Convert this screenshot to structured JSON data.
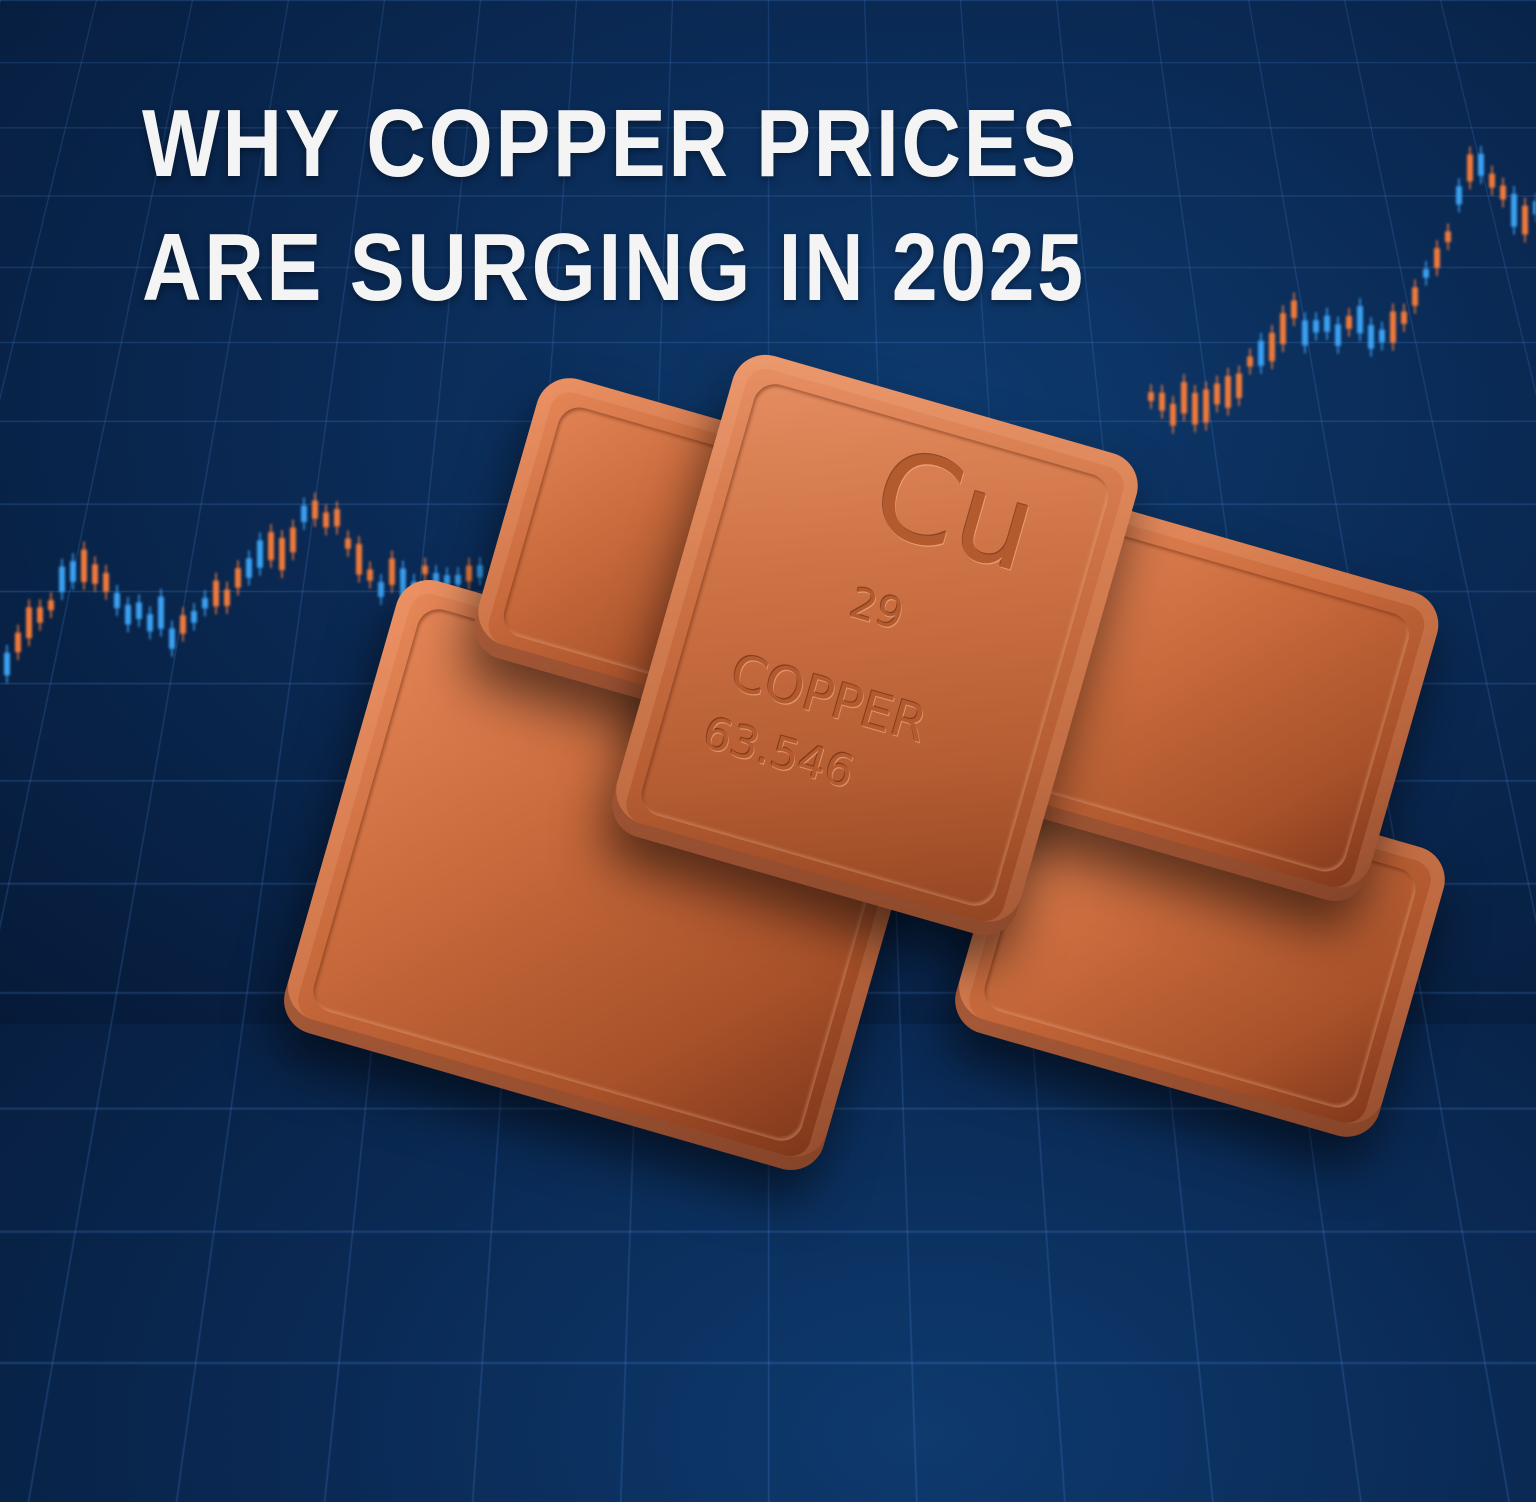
{
  "headline": {
    "line1": "WHY COPPER PRICES",
    "line2": "ARE SURGING IN 2025"
  },
  "bar": {
    "symbol": "Cu",
    "atomic_number": "29",
    "name": "COPPER",
    "atomic_mass": "63.546"
  },
  "colors": {
    "background": "#0a2a55",
    "candle_up": "#f07a3a",
    "candle_down": "#3aa0f0",
    "copper": "#c86a3c",
    "title": "#f4f4f4"
  }
}
